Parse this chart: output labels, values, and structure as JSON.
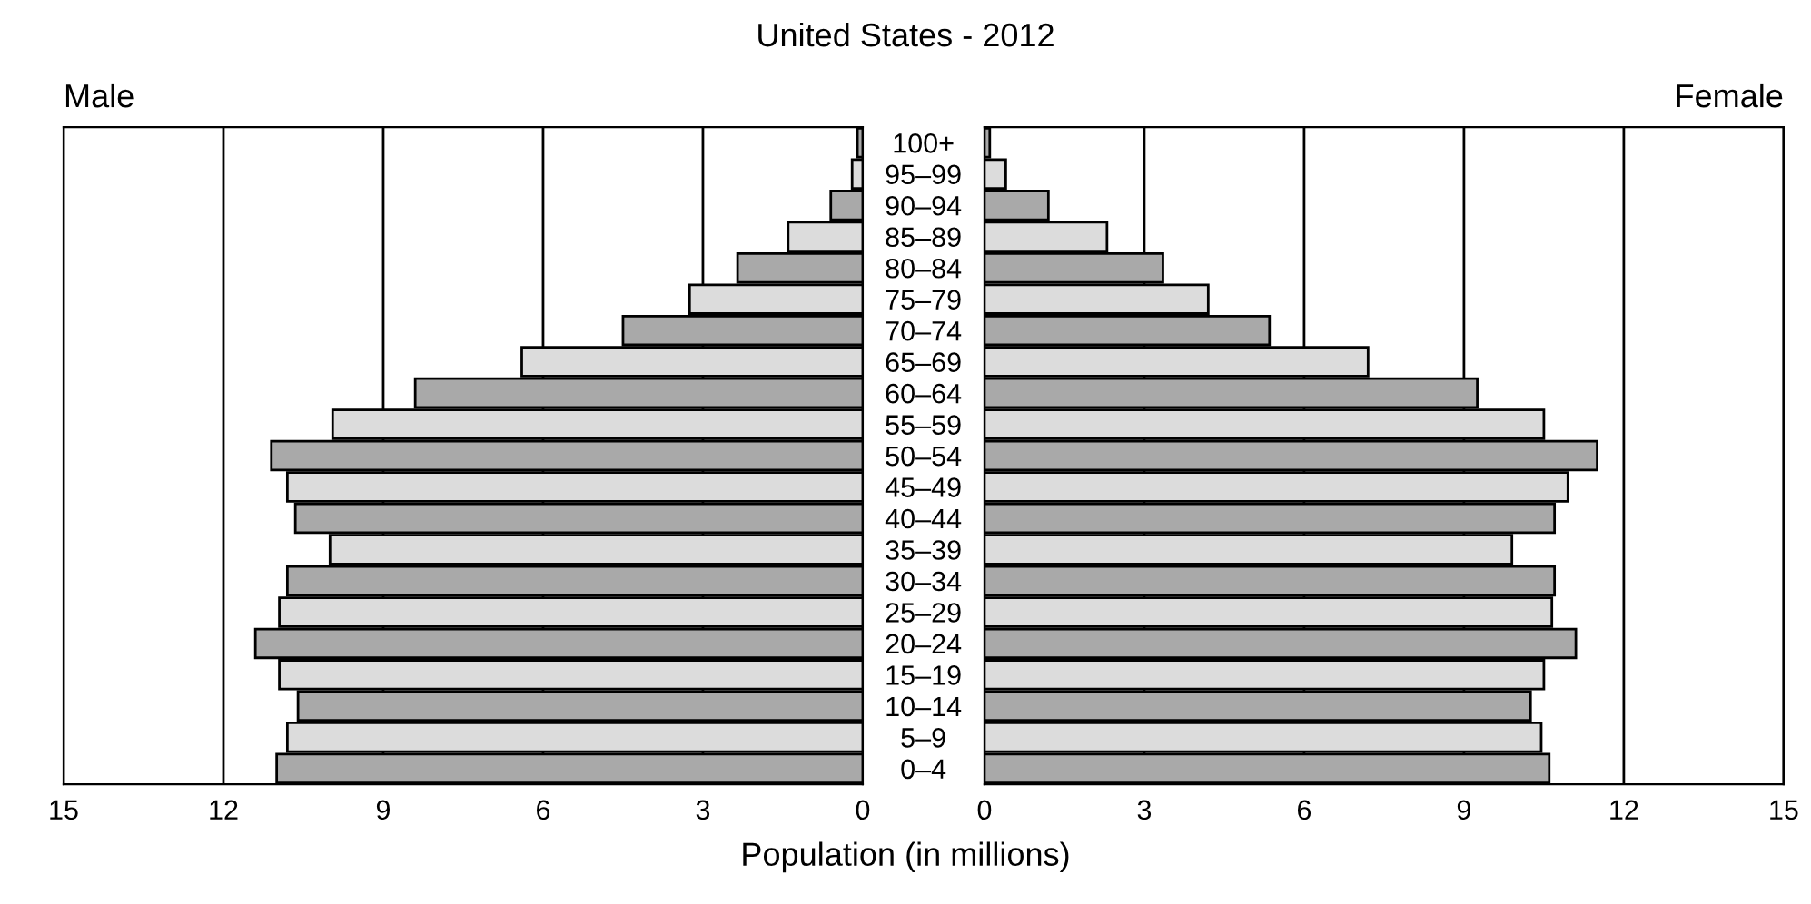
{
  "chart_data": [
    {
      "type": "bar",
      "orientation": "horizontal",
      "title": "United States - 2012",
      "subtitle": "Male",
      "xlabel": "Population (in millions)",
      "categories": [
        "100+",
        "95–99",
        "90–94",
        "85–89",
        "80–84",
        "75–79",
        "70–74",
        "65–69",
        "60–64",
        "55–59",
        "50–54",
        "45–49",
        "40–44",
        "35–39",
        "30–34",
        "25–29",
        "20–24",
        "15–19",
        "10–14",
        "5–9",
        "0–4"
      ],
      "values": [
        0.1,
        0.2,
        0.6,
        1.4,
        2.35,
        3.25,
        4.5,
        6.4,
        8.4,
        9.95,
        11.1,
        10.8,
        10.65,
        10.0,
        10.8,
        10.95,
        11.4,
        10.95,
        10.6,
        10.8,
        11.0
      ],
      "colors": [
        "#a9a9a9",
        "#dcdcdc",
        "#a9a9a9",
        "#dcdcdc",
        "#a9a9a9",
        "#dcdcdc",
        "#a9a9a9",
        "#dcdcdc",
        "#a9a9a9",
        "#dcdcdc",
        "#a9a9a9",
        "#dcdcdc",
        "#a9a9a9",
        "#dcdcdc",
        "#a9a9a9",
        "#dcdcdc",
        "#a9a9a9",
        "#dcdcdc",
        "#a9a9a9",
        "#dcdcdc",
        "#a9a9a9"
      ],
      "xlim": [
        15,
        0
      ],
      "xticks": [
        15,
        12,
        9,
        6,
        3,
        0
      ],
      "grid": "x"
    },
    {
      "type": "bar",
      "orientation": "horizontal",
      "subtitle": "Female",
      "tick_labels": "x",
      "categories": [
        null,
        null,
        null,
        null,
        null,
        null,
        null,
        null,
        null,
        null,
        null,
        null,
        null,
        null,
        null,
        null,
        null,
        null,
        null,
        null,
        null
      ],
      "values": [
        0.1,
        0.4,
        1.2,
        2.3,
        3.35,
        4.2,
        5.35,
        7.2,
        9.25,
        10.5,
        11.5,
        10.95,
        10.7,
        9.9,
        10.7,
        10.65,
        11.1,
        10.5,
        10.25,
        10.45,
        10.6
      ],
      "colors": [
        "#a9a9a9",
        "#dcdcdc",
        "#a9a9a9",
        "#dcdcdc",
        "#a9a9a9",
        "#dcdcdc",
        "#a9a9a9",
        "#dcdcdc",
        "#a9a9a9",
        "#dcdcdc",
        "#a9a9a9",
        "#dcdcdc",
        "#a9a9a9",
        "#dcdcdc",
        "#a9a9a9",
        "#dcdcdc",
        "#a9a9a9",
        "#dcdcdc",
        "#a9a9a9",
        "#dcdcdc",
        "#a9a9a9"
      ],
      "xlim": [
        0,
        15
      ],
      "xticks": [
        0,
        3,
        6,
        9,
        12,
        15
      ],
      "grid": "x"
    }
  ]
}
